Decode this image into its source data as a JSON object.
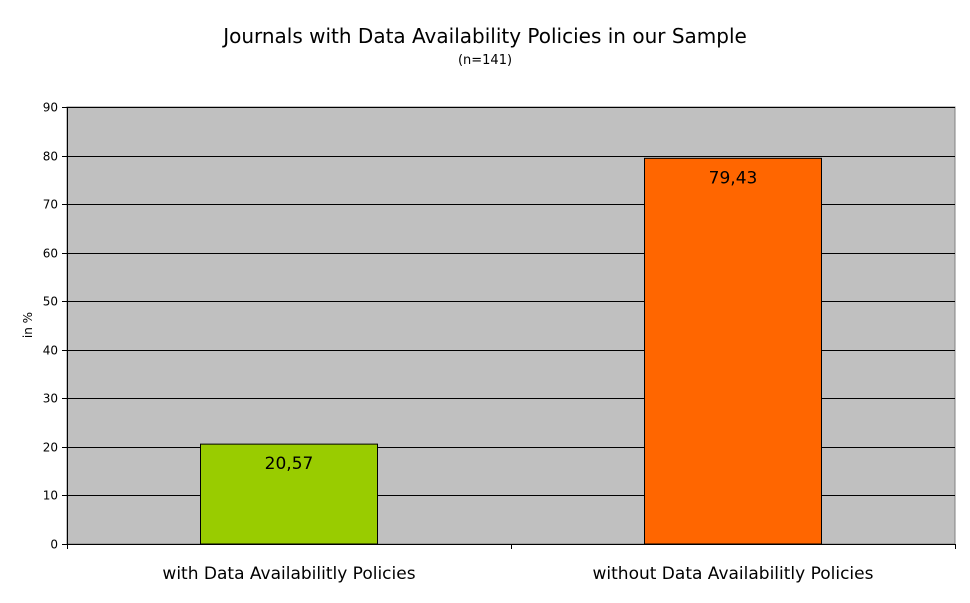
{
  "chart_data": {
    "type": "bar",
    "title": "Journals with Data Availability Policies in our Sample",
    "subtitle": "(n=141)",
    "xlabel": "",
    "ylabel": "in %",
    "ylim": [
      0,
      90
    ],
    "yticks": [
      "0",
      "10",
      "20",
      "30",
      "40",
      "50",
      "60",
      "70",
      "80",
      "90"
    ],
    "categories": [
      "with Data Availabilitly Policies",
      "without Data Availabilitly Policies"
    ],
    "values": [
      20.57,
      79.43
    ],
    "data_labels": [
      "20,57",
      "79,43"
    ],
    "colors": [
      "#99cc00",
      "#ff6600"
    ],
    "plot_background": "#c0c0c0",
    "grid": true,
    "legend": "none"
  }
}
